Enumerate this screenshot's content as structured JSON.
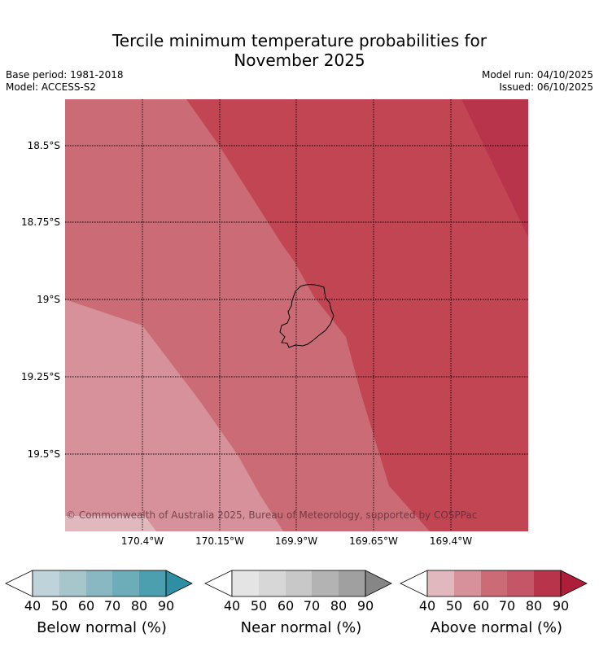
{
  "header": {
    "title_line1": "Tercile minimum temperature probabilities for",
    "title_line2": "November 2025",
    "base_period": "Base period: 1981-2018",
    "model": "Model: ACCESS-S2",
    "model_run": "Model run: 04/10/2025",
    "issued": "Issued: 06/10/2025"
  },
  "map": {
    "latitude_labels": [
      "18.5°S",
      "18.75°S",
      "19°S",
      "19.25°S",
      "19.5°S"
    ],
    "longitude_labels": [
      "170.4°W",
      "170.15°W",
      "169.9°W",
      "169.65°W",
      "169.4°W"
    ],
    "copyright": "© Commonwealth of Australia 2025, Bureau of Meteorology, supported by COSPPac",
    "zone_colors": {
      "above_40_50": "#e2b8bf",
      "above_50_60": "#d6919a",
      "above_60_70": "#cb6b76",
      "above_70_80": "#c24554",
      "above_80_90": "#b8344a"
    }
  },
  "legends": [
    {
      "label": "Below normal (%)",
      "ticks": [
        "40",
        "50",
        "60",
        "70",
        "80",
        "90"
      ],
      "colors": [
        "#ffffff",
        "#bfd3da",
        "#a6c6cc",
        "#89b7c2",
        "#6dadba",
        "#4b9fae",
        "#2e8fa4"
      ]
    },
    {
      "label": "Near normal (%)",
      "ticks": [
        "40",
        "50",
        "60",
        "70",
        "80",
        "90"
      ],
      "colors": [
        "#ffffff",
        "#e4e4e4",
        "#d7d7d7",
        "#c8c8c8",
        "#b3b3b3",
        "#a0a0a0",
        "#868686"
      ]
    },
    {
      "label": "Above normal (%)",
      "ticks": [
        "40",
        "50",
        "60",
        "70",
        "80",
        "90"
      ],
      "colors": [
        "#ffffff",
        "#e2b8bf",
        "#d6919a",
        "#cb6b76",
        "#c45667",
        "#b8344a",
        "#ad1e3b"
      ]
    }
  ]
}
